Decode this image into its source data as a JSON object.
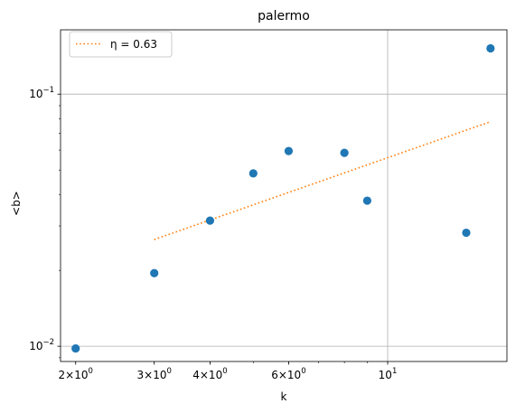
{
  "chart_data": {
    "type": "scatter",
    "title": "palermo",
    "xlabel": "k",
    "ylabel": "<b>",
    "xscale": "log",
    "yscale": "log",
    "xlim": [
      1.85,
      18.5
    ],
    "ylim": [
      0.0087,
      0.18
    ],
    "grid": "major",
    "legend_position": "top-left",
    "x_tick_labels": [
      {
        "value": 2,
        "base": "2",
        "exp": "0"
      },
      {
        "value": 3,
        "base": "3",
        "exp": "0"
      },
      {
        "value": 4,
        "base": "4",
        "exp": "0"
      },
      {
        "value": 6,
        "base": "6",
        "exp": "0"
      },
      {
        "value": 10,
        "base": "10",
        "exp": "1"
      }
    ],
    "x_major_grid": [
      10
    ],
    "x_minor_ticks": [
      2,
      3,
      4,
      5,
      6,
      7,
      8,
      9
    ],
    "y_tick_labels": [
      {
        "value": 0.01,
        "base": "10",
        "exp": "−2"
      },
      {
        "value": 0.1,
        "base": "10",
        "exp": "−1"
      }
    ],
    "y_minor_ticks": [
      0.009,
      0.02,
      0.03,
      0.04,
      0.05,
      0.06,
      0.07,
      0.08,
      0.09
    ],
    "series": [
      {
        "kind": "scatter",
        "color": "#1f77b4",
        "points": [
          {
            "x": 2,
            "y": 0.0098
          },
          {
            "x": 3,
            "y": 0.0195
          },
          {
            "x": 4,
            "y": 0.0315
          },
          {
            "x": 5,
            "y": 0.0485
          },
          {
            "x": 6,
            "y": 0.0595
          },
          {
            "x": 8,
            "y": 0.0585
          },
          {
            "x": 9,
            "y": 0.0378
          },
          {
            "x": 15,
            "y": 0.0282
          },
          {
            "x": 17,
            "y": 0.152
          }
        ]
      },
      {
        "kind": "line",
        "name": "η = 0.63",
        "color": "#ff7f0e",
        "style": "dotted",
        "points": [
          {
            "x": 3,
            "y": 0.0265
          },
          {
            "x": 17,
            "y": 0.0778
          }
        ]
      }
    ]
  }
}
